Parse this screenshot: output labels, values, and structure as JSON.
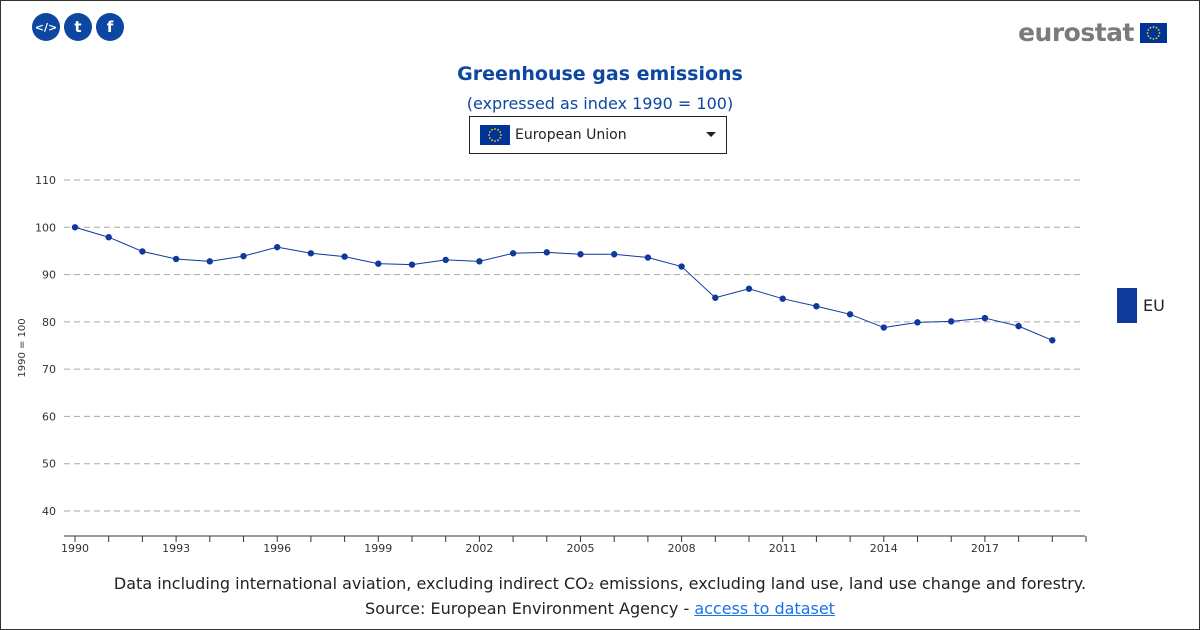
{
  "share": {
    "embed_label": "</>",
    "twitter_label": "t",
    "facebook_label": "f"
  },
  "logo": {
    "text": "eurostat"
  },
  "header": {
    "title": "Greenhouse gas emissions",
    "subtitle": "(expressed as index 1990 = 100)"
  },
  "country_select": {
    "value": "European Union"
  },
  "legend": {
    "label": "EU",
    "color": "#0e3a9b"
  },
  "footer": {
    "note": "Data including international aviation, excluding indirect CO₂ emissions, excluding land use, land use change and forestry.",
    "source_prefix": "Source: European Environment Agency - ",
    "source_link": "access to dataset"
  },
  "colors": {
    "accent": "#0e47a1",
    "line": "#0e3a9b",
    "grid": "#aaaaaa"
  },
  "chart_data": {
    "type": "line",
    "title": "Greenhouse gas emissions",
    "subtitle": "(expressed as index 1990 = 100)",
    "xlabel": "",
    "ylabel": "1990 = 100",
    "ylim": [
      35,
      110
    ],
    "yticks": [
      40,
      50,
      60,
      70,
      80,
      90,
      100,
      110
    ],
    "xlim": [
      1990,
      2020
    ],
    "xtick_labels": [
      1990,
      1993,
      1996,
      1999,
      2002,
      2005,
      2008,
      2011,
      2014,
      2017
    ],
    "grid": true,
    "legend_position": "right",
    "series": [
      {
        "name": "EU",
        "x": [
          1990,
          1991,
          1992,
          1993,
          1994,
          1995,
          1996,
          1997,
          1998,
          1999,
          2000,
          2001,
          2002,
          2003,
          2004,
          2005,
          2006,
          2007,
          2008,
          2009,
          2010,
          2011,
          2012,
          2013,
          2014,
          2015,
          2016,
          2017,
          2018,
          2019
        ],
        "values": [
          100,
          97.9,
          94.9,
          93.3,
          92.8,
          93.9,
          95.8,
          94.5,
          93.8,
          92.3,
          92.1,
          93.1,
          92.8,
          94.5,
          94.7,
          94.3,
          94.3,
          93.6,
          91.7,
          85.1,
          87.0,
          84.9,
          83.3,
          81.6,
          78.8,
          79.9,
          80.1,
          80.8,
          79.1,
          76.1
        ]
      }
    ]
  }
}
